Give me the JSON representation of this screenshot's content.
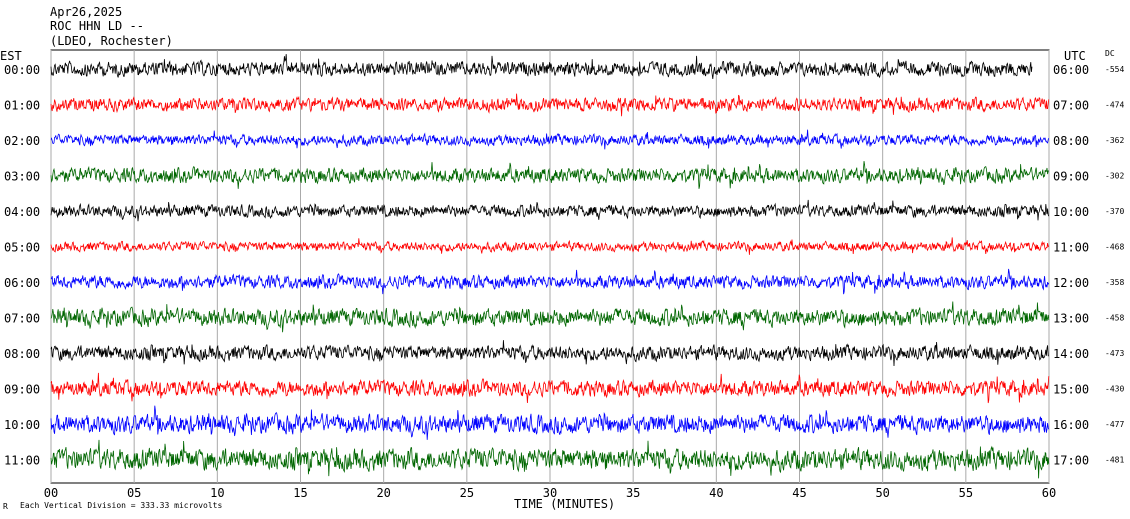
{
  "chart_data": {
    "type": "line",
    "header": {
      "date": "Apr26,2025",
      "station": "ROC HHN LD --",
      "network": "(LDEO, Rochester)"
    },
    "left_axis_label": "EST",
    "right_axis_label": "UTC",
    "dc_label": "DC",
    "xlabel": "TIME (MINUTES)",
    "xlim": [
      0,
      60
    ],
    "x_ticks": [
      "00",
      "05",
      "10",
      "15",
      "20",
      "25",
      "30",
      "35",
      "40",
      "45",
      "50",
      "55",
      "60"
    ],
    "footer_note": "Each Vertical Division =  333.33 microvolts",
    "corner_mark": "R",
    "series": [
      {
        "est": "00:00",
        "utc": "06:00",
        "dc": "-554",
        "color": "#000000",
        "amplitude": 0.55,
        "end_minute": 59
      },
      {
        "est": "01:00",
        "utc": "07:00",
        "dc": "-474",
        "color": "#ff0000",
        "amplitude": 0.5,
        "end_minute": 60
      },
      {
        "est": "02:00",
        "utc": "08:00",
        "dc": "-362",
        "color": "#0000ff",
        "amplitude": 0.4,
        "end_minute": 60
      },
      {
        "est": "03:00",
        "utc": "09:00",
        "dc": "-302",
        "color": "#006600",
        "amplitude": 0.55,
        "end_minute": 60
      },
      {
        "est": "04:00",
        "utc": "10:00",
        "dc": "-370",
        "color": "#000000",
        "amplitude": 0.45,
        "end_minute": 60
      },
      {
        "est": "05:00",
        "utc": "11:00",
        "dc": "-468",
        "color": "#ff0000",
        "amplitude": 0.35,
        "end_minute": 60
      },
      {
        "est": "06:00",
        "utc": "12:00",
        "dc": "-358",
        "color": "#0000ff",
        "amplitude": 0.5,
        "end_minute": 60
      },
      {
        "est": "07:00",
        "utc": "13:00",
        "dc": "-458",
        "color": "#006600",
        "amplitude": 0.65,
        "end_minute": 60
      },
      {
        "est": "08:00",
        "utc": "14:00",
        "dc": "-473",
        "color": "#000000",
        "amplitude": 0.55,
        "end_minute": 60
      },
      {
        "est": "09:00",
        "utc": "15:00",
        "dc": "-430",
        "color": "#ff0000",
        "amplitude": 0.6,
        "end_minute": 60
      },
      {
        "est": "10:00",
        "utc": "16:00",
        "dc": "-477",
        "color": "#0000ff",
        "amplitude": 0.7,
        "end_minute": 60
      },
      {
        "est": "11:00",
        "utc": "17:00",
        "dc": "-481",
        "color": "#006600",
        "amplitude": 0.8,
        "end_minute": 60
      }
    ],
    "grid": true
  }
}
